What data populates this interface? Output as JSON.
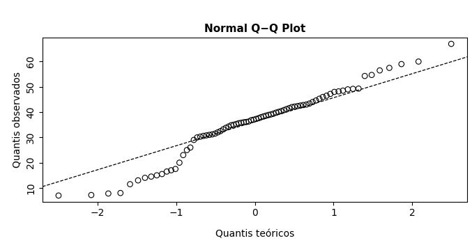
{
  "chart_data": {
    "type": "scatter",
    "title": "Normal Q−Q Plot",
    "x_label": "Quantis teóricos",
    "y_label": "Quantis observados",
    "x": [
      -2.496,
      -2.08,
      -1.863,
      -1.709,
      -1.587,
      -1.485,
      -1.397,
      -1.318,
      -1.247,
      -1.181,
      -1.12,
      -1.064,
      -1.01,
      -0.959,
      -0.911,
      -0.864,
      -0.82,
      -0.776,
      -0.734,
      -0.694,
      -0.655,
      -0.616,
      -0.579,
      -0.542,
      -0.506,
      -0.471,
      -0.437,
      -0.402,
      -0.369,
      -0.335,
      -0.302,
      -0.27,
      -0.237,
      -0.205,
      -0.173,
      -0.141,
      -0.11,
      -0.078,
      -0.047,
      -0.016,
      0.016,
      0.047,
      0.078,
      0.11,
      0.141,
      0.173,
      0.205,
      0.237,
      0.27,
      0.302,
      0.335,
      0.369,
      0.402,
      0.437,
      0.471,
      0.506,
      0.542,
      0.579,
      0.616,
      0.655,
      0.694,
      0.734,
      0.776,
      0.82,
      0.864,
      0.911,
      0.959,
      1.01,
      1.064,
      1.12,
      1.181,
      1.247,
      1.318,
      1.397,
      1.485,
      1.587,
      1.709,
      1.863,
      2.08,
      2.496
    ],
    "values": [
      7,
      7.2,
      7.8,
      8,
      11.5,
      13,
      14,
      14.5,
      15,
      15.5,
      16.5,
      17,
      17.5,
      20,
      23,
      25,
      26,
      29,
      30,
      30.3,
      30.6,
      30.8,
      31,
      31.2,
      31.5,
      32,
      32.5,
      33.2,
      33.8,
      34.3,
      34.8,
      35,
      35.3,
      35.6,
      35.8,
      36,
      36.1,
      36.3,
      36.8,
      37,
      37.3,
      37.6,
      38,
      38.3,
      38.6,
      38.9,
      39.1,
      39.4,
      39.8,
      40.1,
      40.4,
      40.8,
      41.2,
      41.6,
      42,
      42.2,
      42.4,
      42.6,
      42.8,
      43,
      43.4,
      44,
      44.6,
      45.3,
      46,
      46.5,
      47.2,
      48,
      48.2,
      48.5,
      49,
      49.2,
      49.3,
      54.3,
      54.7,
      56.5,
      57.5,
      59,
      60,
      67
    ],
    "color": "#000000",
    "marker": "circle",
    "reference_line": {
      "intercept": 36.2,
      "slope": 9.5,
      "line_style": "dashed",
      "color": "#000000"
    },
    "xlim": [
      -2.7,
      2.7
    ],
    "ylim": [
      4.6,
      69.4
    ],
    "xticks": [
      {
        "value": -2,
        "label": "−2"
      },
      {
        "value": -1,
        "label": "−1"
      },
      0,
      1,
      2
    ],
    "yticks": [
      10,
      20,
      30,
      40,
      50,
      60
    ],
    "grid": false
  }
}
